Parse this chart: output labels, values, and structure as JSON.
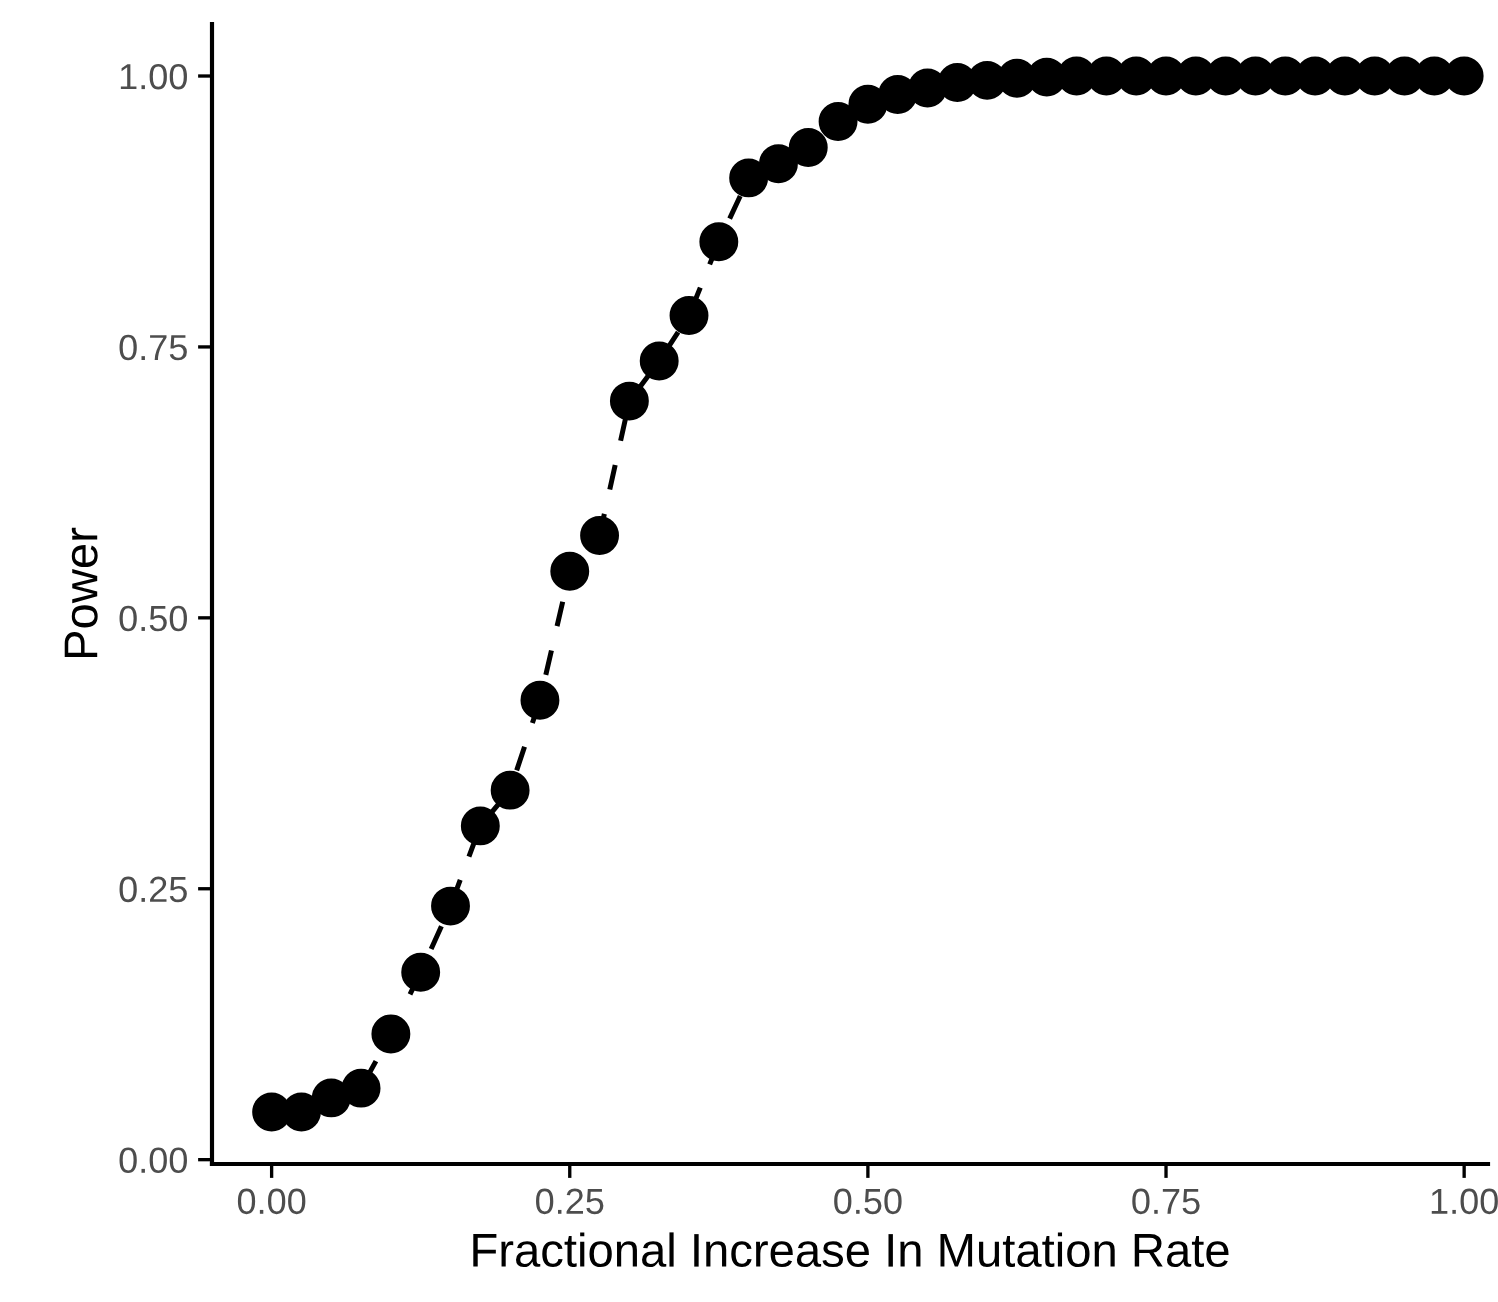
{
  "chart_data": {
    "type": "line",
    "xlabel": "Fractional Increase In Mutation Rate",
    "ylabel": "Power",
    "x": [
      0,
      0.025,
      0.05,
      0.075,
      0.1,
      0.125,
      0.15,
      0.175,
      0.2,
      0.225,
      0.25,
      0.275,
      0.3,
      0.325,
      0.35,
      0.375,
      0.4,
      0.425,
      0.45,
      0.475,
      0.5,
      0.525,
      0.55,
      0.575,
      0.6,
      0.625,
      0.65,
      0.675,
      0.7,
      0.725,
      0.75,
      0.775,
      0.8,
      0.825,
      0.85,
      0.875,
      0.9,
      0.925,
      0.95,
      0.975,
      1.0
    ],
    "series": [
      {
        "color": "#000000",
        "values": [
          0.044,
          0.044,
          0.057,
          0.066,
          0.116,
          0.173,
          0.234,
          0.308,
          0.341,
          0.424,
          0.543,
          0.576,
          0.7,
          0.737,
          0.779,
          0.847,
          0.906,
          0.919,
          0.934,
          0.958,
          0.974,
          0.983,
          0.989,
          0.994,
          0.996,
          0.998,
          0.999,
          1.0,
          1.0,
          1.0,
          1.0,
          1.0,
          1.0,
          1.0,
          1.0,
          1.0,
          1.0,
          1.0,
          1.0,
          1.0,
          1.0
        ]
      }
    ],
    "xlim": [
      -0.05,
      1.02
    ],
    "ylim": [
      -0.004,
      1.048
    ],
    "xticks": [
      {
        "value": 0,
        "label": "0.00"
      },
      {
        "value": 0.25,
        "label": "0.25"
      },
      {
        "value": 0.5,
        "label": "0.50"
      },
      {
        "value": 0.75,
        "label": "0.75"
      },
      {
        "value": 1,
        "label": "1.00"
      }
    ],
    "yticks": [
      {
        "value": 0,
        "label": "0.00"
      },
      {
        "value": 0.25,
        "label": "0.25"
      },
      {
        "value": 0.5,
        "label": "0.50"
      },
      {
        "value": 0.75,
        "label": "0.75"
      },
      {
        "value": 1,
        "label": "1.00"
      }
    ],
    "marker": "circle",
    "line_style": "dashed",
    "grid": false,
    "legend": false
  }
}
